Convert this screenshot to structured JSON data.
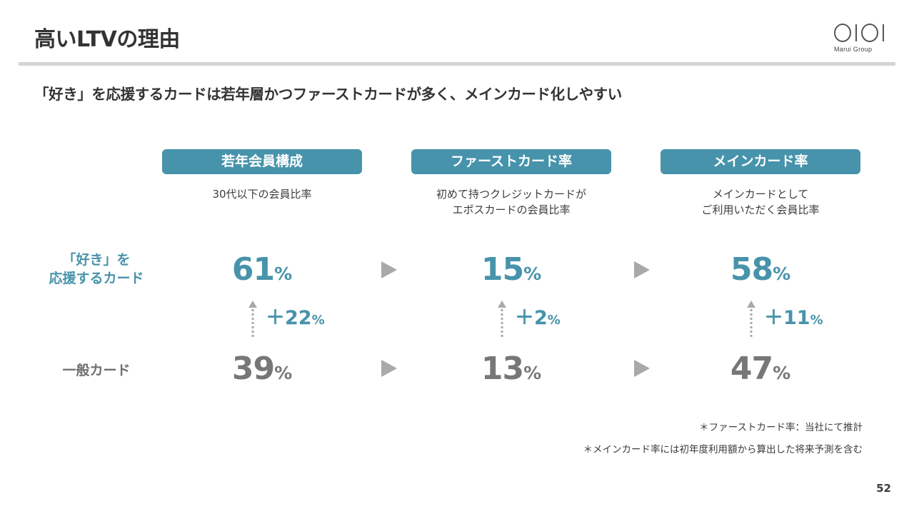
{
  "title": "高いLTVの理由",
  "logo": {
    "mark": "OIOI",
    "text": "Marui Group"
  },
  "subtitle": "「好き」を応援するカードは若年層かつファーストカードが多く、メインカード化しやすい",
  "columns": [
    {
      "header": "若年会員構成",
      "desc": [
        "30代以下の会員比率"
      ]
    },
    {
      "header": "ファーストカード率",
      "desc": [
        "初めて持つクレジットカードが",
        "エポスカードの会員比率"
      ]
    },
    {
      "header": "メインカード率",
      "desc": [
        "メインカードとして",
        "ご利用いただく会員比率"
      ]
    }
  ],
  "rows": {
    "favorite": {
      "label": [
        "「好き」を",
        "応援するカード"
      ],
      "values": [
        "61",
        "15",
        "58"
      ]
    },
    "general": {
      "label": [
        "一般カード"
      ],
      "values": [
        "39",
        "13",
        "47"
      ]
    }
  },
  "unit": "%",
  "diffs": [
    "＋22",
    "＋2",
    "＋11"
  ],
  "notes": [
    "＊ファーストカード率：当社にて推計",
    "＊メインカード率には初年度利用額から算出した将来予測を含む"
  ],
  "page_number": "52",
  "colors": {
    "accent": "#4793ab",
    "gray_value": "#777777",
    "arrow": "#a9a9a9",
    "rule": "#d4d4d4"
  }
}
